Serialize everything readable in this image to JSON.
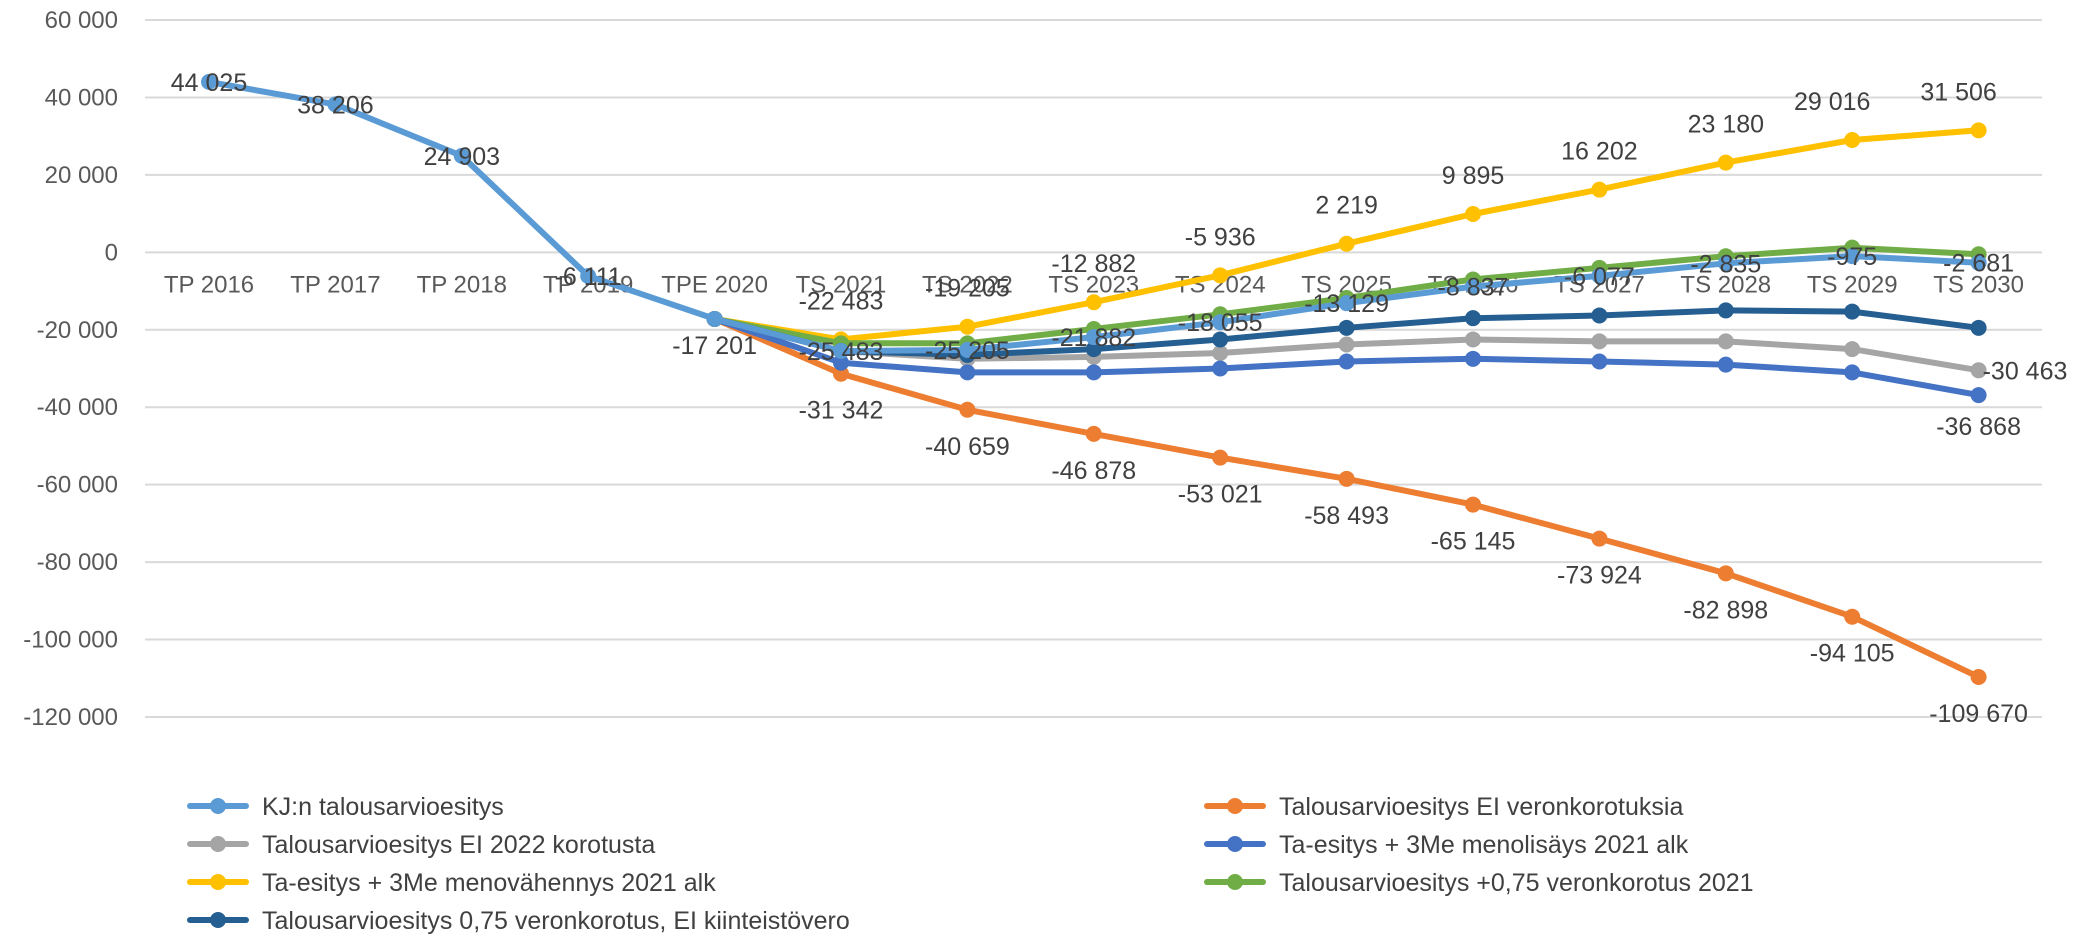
{
  "chart_data": {
    "type": "line",
    "categories": [
      "TP 2016",
      "TP 2017",
      "TP 2018",
      "TP 2019",
      "TPE 2020",
      "TS 2021",
      "TS 2022",
      "TS 2023",
      "TS 2024",
      "TS 2025",
      "TS 2026",
      "TS 2027",
      "TS 2028",
      "TS 2029",
      "TS 2030"
    ],
    "y_ticks": [
      "60 000",
      "40 000",
      "20 000",
      "0",
      "-20 000",
      "-40 000",
      "-60 000",
      "-80 000",
      "-100 000",
      "-120 000"
    ],
    "ylim": [
      -120000,
      60000
    ],
    "grid": true,
    "legend_position": "bottom",
    "series": [
      {
        "name": "KJ:n talousarvioesitys",
        "color": "#5B9BD5",
        "values": [
          44025,
          38206,
          24903,
          -6111,
          -17201,
          -25483,
          -25205,
          -21882,
          -18055,
          -13129,
          -8837,
          -6077,
          -2835,
          -975,
          -2681
        ],
        "labels": [
          "44 025",
          "38 206",
          "24 903",
          "-6 111",
          "-17 201",
          "-25 483",
          "-25 205",
          "-21 882",
          "-18 055",
          "-13 129",
          "-8 837",
          "-6 077",
          "-2 835",
          "-975",
          "-2 681"
        ]
      },
      {
        "name": "Talousarvioesitys EI veronkorotuksia",
        "color": "#ED7D31",
        "values": [
          null,
          null,
          null,
          null,
          -17201,
          -31342,
          -40659,
          -46878,
          -53021,
          -58493,
          -65145,
          -73924,
          -82898,
          -94105,
          -109670
        ],
        "labels": [
          null,
          null,
          null,
          null,
          null,
          "-31 342",
          "-40 659",
          "-46 878",
          "-53 021",
          "-58 493",
          "-65 145",
          "-73 924",
          "-82 898",
          "-94 105",
          "-109 670"
        ]
      },
      {
        "name": "Talousarvioesitys EI 2022 korotusta",
        "color": "#A5A5A5",
        "values": [
          null,
          null,
          null,
          null,
          -17201,
          -25483,
          -27500,
          -27000,
          -26000,
          -23800,
          -22500,
          -23000,
          -23000,
          -25000,
          -30463
        ],
        "labels": [
          null,
          null,
          null,
          null,
          null,
          null,
          null,
          null,
          null,
          null,
          null,
          null,
          null,
          null,
          "-30 463"
        ]
      },
      {
        "name": "Ta-esitys +  3Me menolisäys 2021 alk",
        "color": "#4472C4",
        "values": [
          null,
          null,
          null,
          null,
          -17201,
          -28500,
          -31000,
          -31000,
          -30000,
          -28200,
          -27500,
          -28200,
          -29000,
          -31000,
          -36868
        ],
        "labels": [
          null,
          null,
          null,
          null,
          null,
          null,
          null,
          null,
          null,
          null,
          null,
          null,
          null,
          null,
          "-36 868"
        ]
      },
      {
        "name": "Ta-esitys + 3Me menovähennys 2021 alk",
        "color": "#FFC000",
        "values": [
          null,
          null,
          null,
          null,
          -17201,
          -22483,
          -19205,
          -12882,
          -5936,
          2219,
          9895,
          16202,
          23180,
          29016,
          31506
        ],
        "labels": [
          null,
          null,
          null,
          null,
          null,
          "-22 483",
          "-19 205",
          "-12 882",
          "-5 936",
          "2 219",
          "9 895",
          "16 202",
          "23 180",
          "29 016",
          "31 506"
        ]
      },
      {
        "name": "Talousarvioesitys +0,75 veronkorotus 2021",
        "color": "#70AD47",
        "values": [
          null,
          null,
          null,
          null,
          -17201,
          -23500,
          -23500,
          -19800,
          -16000,
          -11800,
          -7000,
          -4000,
          -1000,
          1200,
          -500
        ],
        "labels": []
      },
      {
        "name": "Talousarvioesitys 0,75 veronkorotus, EI kiinteistövero",
        "color": "#255E91",
        "values": [
          null,
          null,
          null,
          null,
          -17201,
          -25483,
          -26500,
          -25000,
          -22500,
          -19500,
          -17000,
          -16300,
          -15000,
          -15300,
          -19500
        ],
        "labels": []
      }
    ]
  }
}
